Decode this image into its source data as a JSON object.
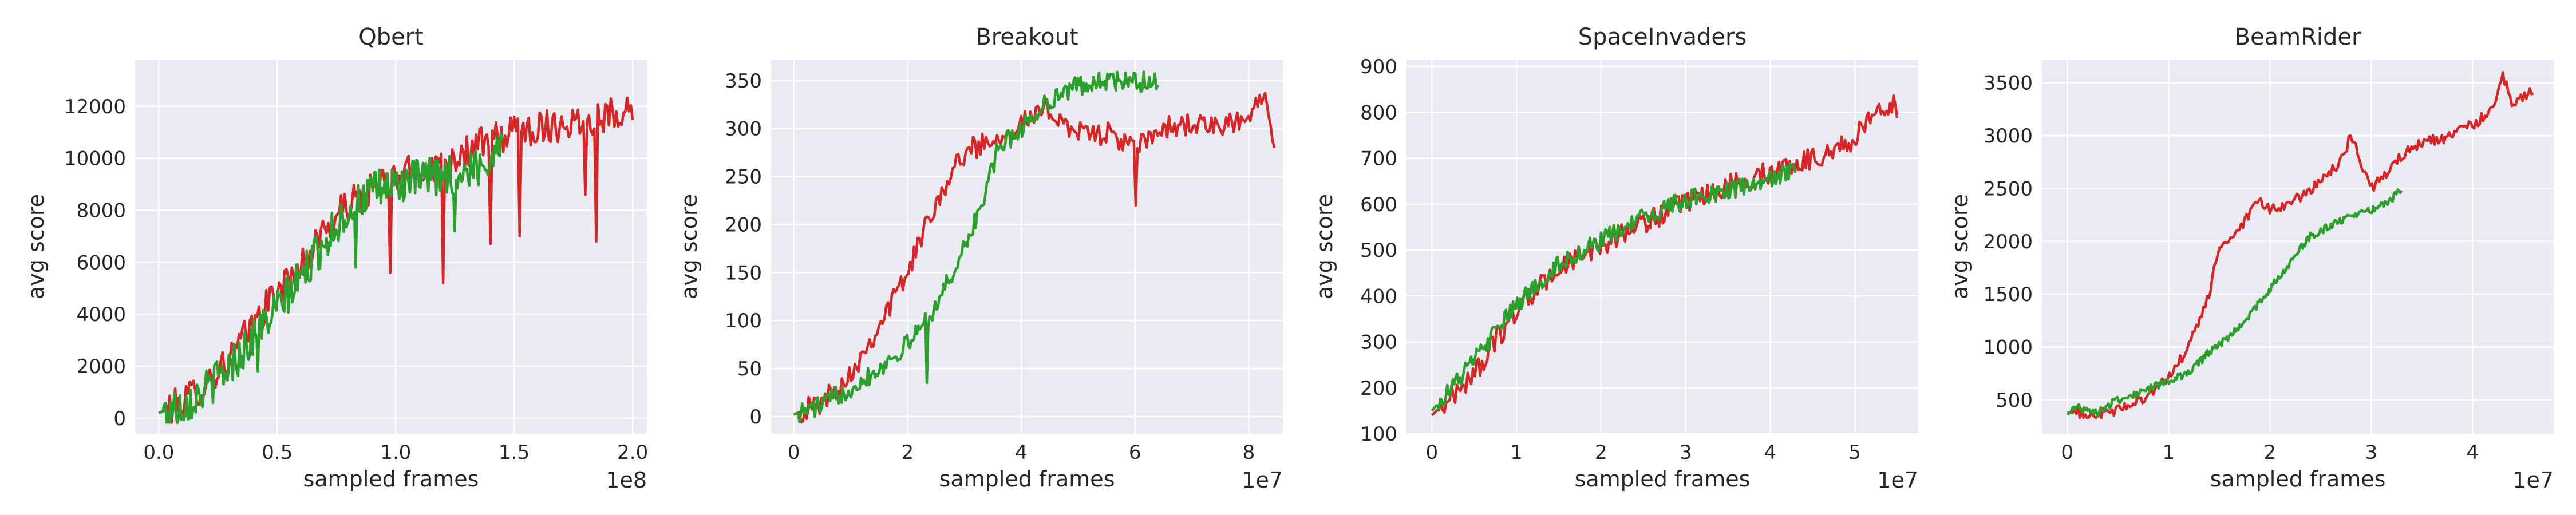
{
  "colors": {
    "red": "#d62728",
    "green": "#2ca02c",
    "panel_bg": "#eaeaf2",
    "grid": "#ffffff"
  },
  "chart_data": [
    {
      "type": "line",
      "title": "Qbert",
      "xlabel": "sampled frames",
      "ylabel": "avg score",
      "x_offset_label": "1e8",
      "xlim": [
        -0.1,
        2.06
      ],
      "ylim": [
        -600,
        13800
      ],
      "xticks": [
        0.0,
        0.5,
        1.0,
        1.5,
        2.0
      ],
      "xtick_labels": [
        "0.0",
        "0.5",
        "1.0",
        "1.5",
        "2.0"
      ],
      "yticks": [
        0,
        2000,
        4000,
        6000,
        8000,
        10000,
        12000
      ],
      "ytick_labels": [
        "0",
        "2000",
        "4000",
        "6000",
        "8000",
        "10000",
        "12000"
      ],
      "grid": true,
      "series": [
        {
          "color": "#d62728",
          "noise": 0.055,
          "spikes": [
            [
              1.4,
              6700
            ],
            [
              1.52,
              7000
            ],
            [
              1.8,
              8600
            ],
            [
              1.85,
              6800
            ],
            [
              1.2,
              5200
            ],
            [
              0.98,
              5600
            ]
          ],
          "points": [
            [
              0.0,
              200
            ],
            [
              0.1,
              600
            ],
            [
              0.2,
              1400
            ],
            [
              0.3,
              2300
            ],
            [
              0.4,
              3600
            ],
            [
              0.5,
              4900
            ],
            [
              0.6,
              5800
            ],
            [
              0.7,
              7300
            ],
            [
              0.8,
              8200
            ],
            [
              0.9,
              8800
            ],
            [
              1.0,
              9300
            ],
            [
              1.1,
              9600
            ],
            [
              1.2,
              9800
            ],
            [
              1.3,
              10300
            ],
            [
              1.4,
              10700
            ],
            [
              1.5,
              11000
            ],
            [
              1.6,
              11200
            ],
            [
              1.7,
              11300
            ],
            [
              1.8,
              11500
            ],
            [
              1.9,
              11700
            ],
            [
              2.0,
              12000
            ]
          ]
        },
        {
          "color": "#2ca02c",
          "noise": 0.07,
          "spikes": [
            [
              0.42,
              1800
            ],
            [
              0.83,
              5800
            ],
            [
              1.25,
              7200
            ]
          ],
          "points": [
            [
              0.0,
              200
            ],
            [
              0.1,
              500
            ],
            [
              0.2,
              1100
            ],
            [
              0.3,
              2000
            ],
            [
              0.4,
              3100
            ],
            [
              0.5,
              4200
            ],
            [
              0.6,
              5400
            ],
            [
              0.7,
              6800
            ],
            [
              0.8,
              8000
            ],
            [
              0.9,
              8700
            ],
            [
              1.0,
              9000
            ],
            [
              1.1,
              9200
            ],
            [
              1.2,
              9300
            ],
            [
              1.3,
              9500
            ],
            [
              1.4,
              9900
            ],
            [
              1.45,
              11000
            ]
          ]
        }
      ]
    },
    {
      "type": "line",
      "title": "Breakout",
      "xlabel": "sampled frames",
      "ylabel": "avg score",
      "x_offset_label": "1e7",
      "xlim": [
        -0.4,
        8.6
      ],
      "ylim": [
        -18,
        372
      ],
      "xticks": [
        0,
        2,
        4,
        6,
        8
      ],
      "xtick_labels": [
        "0",
        "2",
        "4",
        "6",
        "8"
      ],
      "yticks": [
        0,
        50,
        100,
        150,
        200,
        250,
        300,
        350
      ],
      "ytick_labels": [
        "0",
        "50",
        "100",
        "150",
        "200",
        "250",
        "300",
        "350"
      ],
      "grid": true,
      "series": [
        {
          "color": "#d62728",
          "noise": 0.035,
          "spikes": [
            [
              6.0,
              220
            ],
            [
              8.45,
              280
            ]
          ],
          "points": [
            [
              0.0,
              2
            ],
            [
              0.5,
              15
            ],
            [
              1.0,
              45
            ],
            [
              1.5,
              95
            ],
            [
              2.0,
              150
            ],
            [
              2.5,
              225
            ],
            [
              3.0,
              275
            ],
            [
              3.5,
              290
            ],
            [
              4.0,
              305
            ],
            [
              4.5,
              320
            ],
            [
              5.0,
              295
            ],
            [
              5.5,
              295
            ],
            [
              6.0,
              280
            ],
            [
              6.5,
              300
            ],
            [
              7.0,
              305
            ],
            [
              7.5,
              300
            ],
            [
              8.0,
              310
            ],
            [
              8.3,
              345
            ],
            [
              8.45,
              285
            ]
          ]
        },
        {
          "color": "#2ca02c",
          "noise": 0.03,
          "spikes": [
            [
              2.35,
              35
            ]
          ],
          "points": [
            [
              0.0,
              2
            ],
            [
              0.5,
              12
            ],
            [
              1.0,
              30
            ],
            [
              1.5,
              50
            ],
            [
              2.0,
              75
            ],
            [
              2.5,
              115
            ],
            [
              3.0,
              175
            ],
            [
              3.3,
              220
            ],
            [
              3.6,
              280
            ],
            [
              4.0,
              300
            ],
            [
              4.5,
              330
            ],
            [
              5.0,
              345
            ],
            [
              5.5,
              350
            ],
            [
              6.0,
              348
            ],
            [
              6.4,
              350
            ]
          ]
        }
      ]
    },
    {
      "type": "line",
      "title": "SpaceInvaders",
      "xlabel": "sampled frames",
      "ylabel": "avg score",
      "x_offset_label": "1e7",
      "xlim": [
        -0.3,
        5.75
      ],
      "ylim": [
        100,
        915
      ],
      "xticks": [
        0,
        1,
        2,
        3,
        4,
        5
      ],
      "xtick_labels": [
        "0",
        "1",
        "2",
        "3",
        "4",
        "5"
      ],
      "yticks": [
        100,
        200,
        300,
        400,
        500,
        600,
        700,
        800,
        900
      ],
      "ytick_labels": [
        "100",
        "200",
        "300",
        "400",
        "500",
        "600",
        "700",
        "800",
        "900"
      ],
      "grid": true,
      "series": [
        {
          "color": "#d62728",
          "noise": 0.03,
          "spikes": [],
          "points": [
            [
              0.0,
              140
            ],
            [
              0.5,
              230
            ],
            [
              1.0,
              370
            ],
            [
              1.5,
              460
            ],
            [
              2.0,
              510
            ],
            [
              2.5,
              560
            ],
            [
              3.0,
              600
            ],
            [
              3.5,
              640
            ],
            [
              4.0,
              670
            ],
            [
              4.5,
              700
            ],
            [
              5.0,
              740
            ],
            [
              5.3,
              820
            ],
            [
              5.5,
              810
            ]
          ]
        },
        {
          "color": "#2ca02c",
          "noise": 0.03,
          "spikes": [],
          "points": [
            [
              0.0,
              150
            ],
            [
              0.5,
              260
            ],
            [
              1.0,
              380
            ],
            [
              1.5,
              470
            ],
            [
              2.0,
              520
            ],
            [
              2.5,
              570
            ],
            [
              3.0,
              610
            ],
            [
              3.5,
              630
            ],
            [
              4.0,
              650
            ],
            [
              4.3,
              680
            ]
          ]
        }
      ]
    },
    {
      "type": "line",
      "title": "BeamRider",
      "xlabel": "sampled frames",
      "ylabel": "avg score",
      "x_offset_label": "1e7",
      "xlim": [
        -0.25,
        4.8
      ],
      "ylim": [
        180,
        3720
      ],
      "xticks": [
        0,
        1,
        2,
        3,
        4
      ],
      "xtick_labels": [
        "0",
        "1",
        "2",
        "3",
        "4"
      ],
      "yticks": [
        500,
        1000,
        1500,
        2000,
        2500,
        3000,
        3500
      ],
      "ytick_labels": [
        "500",
        "1000",
        "1500",
        "2000",
        "2500",
        "3000",
        "3500"
      ],
      "grid": true,
      "series": [
        {
          "color": "#d62728",
          "noise": 0.015,
          "spikes": [],
          "points": [
            [
              0.0,
              380
            ],
            [
              0.3,
              360
            ],
            [
              0.5,
              400
            ],
            [
              0.8,
              550
            ],
            [
              1.0,
              700
            ],
            [
              1.2,
              1000
            ],
            [
              1.4,
              1500
            ],
            [
              1.5,
              1950
            ],
            [
              1.7,
              2100
            ],
            [
              1.8,
              2250
            ],
            [
              1.9,
              2380
            ],
            [
              2.0,
              2300
            ],
            [
              2.2,
              2350
            ],
            [
              2.4,
              2500
            ],
            [
              2.6,
              2650
            ],
            [
              2.7,
              2750
            ],
            [
              2.8,
              3000
            ],
            [
              2.9,
              2750
            ],
            [
              3.0,
              2500
            ],
            [
              3.2,
              2700
            ],
            [
              3.4,
              2900
            ],
            [
              3.6,
              2950
            ],
            [
              3.8,
              3000
            ],
            [
              4.0,
              3100
            ],
            [
              4.2,
              3250
            ],
            [
              4.3,
              3550
            ],
            [
              4.4,
              3300
            ],
            [
              4.5,
              3350
            ],
            [
              4.6,
              3450
            ]
          ]
        },
        {
          "color": "#2ca02c",
          "noise": 0.015,
          "spikes": [],
          "points": [
            [
              0.0,
              360
            ],
            [
              0.1,
              440
            ],
            [
              0.3,
              380
            ],
            [
              0.5,
              500
            ],
            [
              0.8,
              600
            ],
            [
              1.0,
              680
            ],
            [
              1.2,
              750
            ],
            [
              1.4,
              950
            ],
            [
              1.6,
              1100
            ],
            [
              1.8,
              1300
            ],
            [
              2.0,
              1550
            ],
            [
              2.2,
              1800
            ],
            [
              2.4,
              2050
            ],
            [
              2.6,
              2150
            ],
            [
              2.8,
              2250
            ],
            [
              3.0,
              2300
            ],
            [
              3.2,
              2400
            ],
            [
              3.3,
              2500
            ]
          ]
        }
      ]
    }
  ]
}
